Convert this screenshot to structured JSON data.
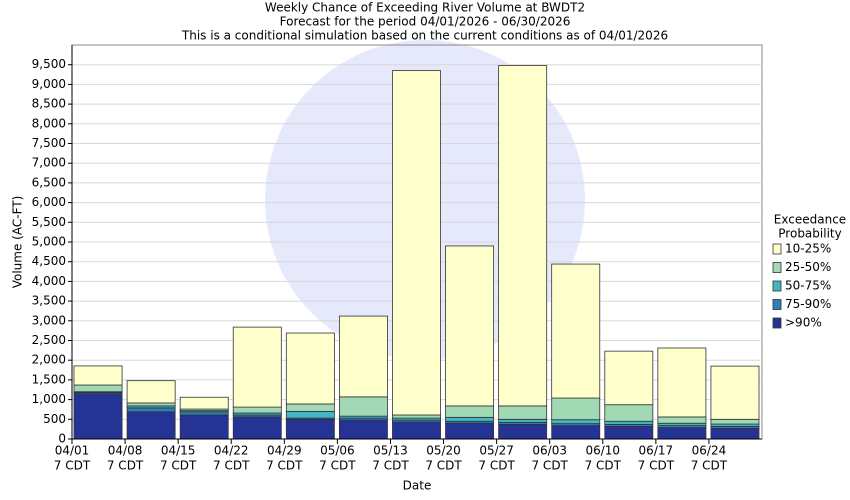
{
  "chart_data": {
    "type": "stacked_bar",
    "title": "Weekly Chance of Exceeding River Volume at BWDT2",
    "subtitle": "Forecast for the period 04/01/2026 - 06/30/2026",
    "subtitle2": "This is a conditional simulation based on the current conditions as of 04/01/2026",
    "y_label": "Volume (AC-FT)",
    "x_label": "Date",
    "legend_title": [
      "Exceedance",
      "Probability"
    ],
    "categories": [
      "04/01",
      "04/08",
      "04/15",
      "04/22",
      "04/29",
      "05/06",
      "05/13",
      "05/20",
      "05/27",
      "06/03",
      "06/10",
      "06/17",
      "06/24"
    ],
    "category_sublabel": "7 CDT",
    "series": [
      {
        "name": "10-25%",
        "color": "#ffffcc",
        "values": [
          485,
          565,
          300,
          2030,
          1800,
          2050,
          8740,
          4060,
          8640,
          3400,
          1360,
          1750,
          1350
        ]
      },
      {
        "name": "25-50%",
        "color": "#a1d9b4",
        "values": [
          170,
          75,
          40,
          150,
          190,
          490,
          80,
          290,
          340,
          550,
          420,
          160,
          120
        ]
      },
      {
        "name": "50-75%",
        "color": "#41b6c4",
        "values": [
          20,
          50,
          30,
          50,
          170,
          50,
          50,
          100,
          80,
          100,
          80,
          60,
          60
        ]
      },
      {
        "name": "75-90%",
        "color": "#2c7fb8",
        "values": [
          30,
          100,
          80,
          50,
          30,
          50,
          50,
          50,
          50,
          50,
          50,
          50,
          50
        ]
      },
      {
        "name": ">90%",
        "color": "#253494",
        "values": [
          1150,
          690,
          610,
          560,
          500,
          480,
          430,
          400,
          370,
          340,
          320,
          290,
          270
        ]
      }
    ],
    "ylim": [
      0,
      10000
    ],
    "yticks": [
      0,
      500,
      {
        "value": 1000,
        "label": "1,000"
      },
      {
        "value": 1500,
        "label": "1,500"
      },
      {
        "value": 2000,
        "label": "2,000"
      },
      {
        "value": 2500,
        "label": "2,500"
      },
      {
        "value": 3000,
        "label": "3,000"
      },
      {
        "value": 3500,
        "label": "3,500"
      },
      {
        "value": 4000,
        "label": "4,000"
      },
      {
        "value": 4500,
        "label": "4,500"
      },
      {
        "value": 5000,
        "label": "5,000"
      },
      {
        "value": 5500,
        "label": "5,500"
      },
      {
        "value": 6000,
        "label": "6,000"
      },
      {
        "value": 6500,
        "label": "6,500"
      },
      {
        "value": 7000,
        "label": "7,000"
      },
      {
        "value": 7500,
        "label": "7,500"
      },
      {
        "value": 8000,
        "label": "8,000"
      },
      {
        "value": 8500,
        "label": "8,500"
      },
      {
        "value": 9000,
        "label": "9,000"
      },
      {
        "value": 9500,
        "label": "9,500"
      }
    ],
    "grid": true
  }
}
